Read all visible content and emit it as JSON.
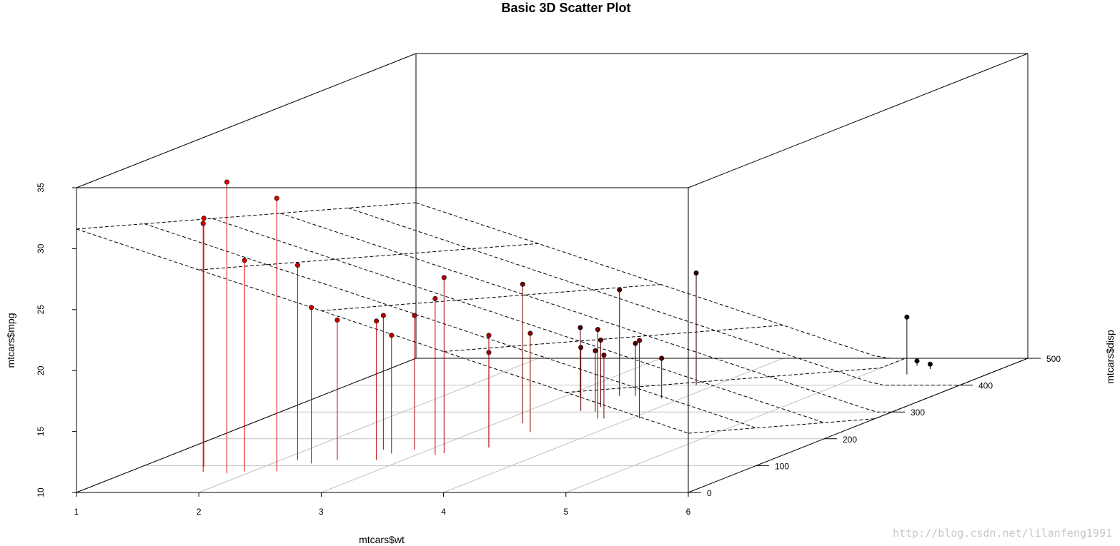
{
  "chart_data": {
    "type": "scatter3d",
    "title": "Basic 3D Scatter Plot",
    "xlabel": "mtcars$wt",
    "ylabel": "mtcars$disp",
    "zlabel": "mtcars$mpg",
    "xlim": [
      1,
      6
    ],
    "ylim": [
      0,
      500
    ],
    "zlim": [
      10,
      35
    ],
    "x_ticks": [
      "1",
      "2",
      "3",
      "4",
      "5",
      "6"
    ],
    "y_ticks": [
      "0",
      "100",
      "200",
      "300",
      "400",
      "500"
    ],
    "z_ticks": [
      "10",
      "15",
      "20",
      "25",
      "30",
      "35"
    ],
    "grid": true,
    "type_h": true,
    "regression_plane": true,
    "plane": {
      "intercept": 34.96,
      "wt": -3.35,
      "disp": -0.0177
    },
    "color_scale": [
      "#ff0000",
      "#000000"
    ],
    "points": [
      {
        "wt": 2.62,
        "disp": 160,
        "mpg": 21.0
      },
      {
        "wt": 2.875,
        "disp": 160,
        "mpg": 21.0
      },
      {
        "wt": 2.32,
        "disp": 108,
        "mpg": 22.8
      },
      {
        "wt": 3.215,
        "disp": 258,
        "mpg": 21.4
      },
      {
        "wt": 3.44,
        "disp": 360,
        "mpg": 18.7
      },
      {
        "wt": 3.46,
        "disp": 225,
        "mpg": 18.1
      },
      {
        "wt": 3.57,
        "disp": 360,
        "mpg": 14.3
      },
      {
        "wt": 3.19,
        "disp": 146.7,
        "mpg": 24.4
      },
      {
        "wt": 3.15,
        "disp": 140.8,
        "mpg": 22.8
      },
      {
        "wt": 3.44,
        "disp": 167.6,
        "mpg": 19.2
      },
      {
        "wt": 3.44,
        "disp": 167.6,
        "mpg": 17.8
      },
      {
        "wt": 4.07,
        "disp": 275.8,
        "mpg": 16.4
      },
      {
        "wt": 3.73,
        "disp": 275.8,
        "mpg": 17.3
      },
      {
        "wt": 3.78,
        "disp": 275.8,
        "mpg": 15.2
      },
      {
        "wt": 5.25,
        "disp": 472,
        "mpg": 10.4
      },
      {
        "wt": 5.424,
        "disp": 460,
        "mpg": 10.4
      },
      {
        "wt": 5.345,
        "disp": 440,
        "mpg": 14.7
      },
      {
        "wt": 2.2,
        "disp": 78.7,
        "mpg": 32.4
      },
      {
        "wt": 1.615,
        "disp": 75.7,
        "mpg": 30.4
      },
      {
        "wt": 1.835,
        "disp": 71.1,
        "mpg": 33.9
      },
      {
        "wt": 2.465,
        "disp": 120.1,
        "mpg": 21.5
      },
      {
        "wt": 3.52,
        "disp": 318,
        "mpg": 15.5
      },
      {
        "wt": 3.435,
        "disp": 304,
        "mpg": 15.2
      },
      {
        "wt": 3.84,
        "disp": 350,
        "mpg": 13.3
      },
      {
        "wt": 3.845,
        "disp": 400,
        "mpg": 19.2
      },
      {
        "wt": 1.935,
        "disp": 79,
        "mpg": 27.3
      },
      {
        "wt": 2.14,
        "disp": 120.3,
        "mpg": 26.0
      },
      {
        "wt": 1.513,
        "disp": 95.1,
        "mpg": 30.4
      },
      {
        "wt": 3.17,
        "disp": 351,
        "mpg": 15.8
      },
      {
        "wt": 2.77,
        "disp": 145,
        "mpg": 19.7
      },
      {
        "wt": 3.57,
        "disp": 301,
        "mpg": 15.0
      },
      {
        "wt": 2.78,
        "disp": 121,
        "mpg": 21.4
      }
    ]
  },
  "watermark": "http://blog.csdn.net/lilanfeng1991"
}
